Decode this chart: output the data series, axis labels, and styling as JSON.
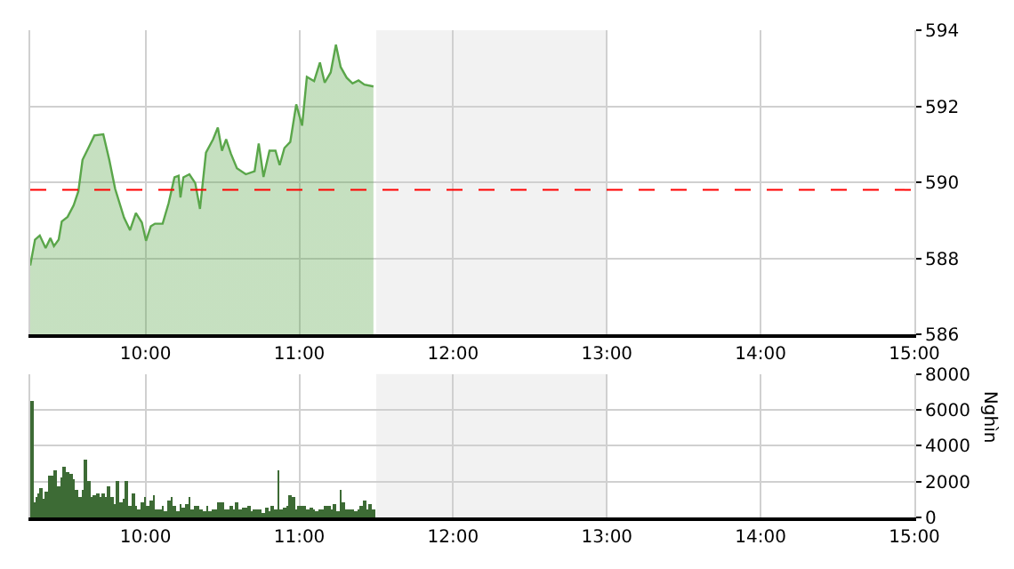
{
  "chart_data": [
    {
      "type": "area",
      "xlim": [
        9.25,
        15
      ],
      "ylim": [
        586,
        594
      ],
      "xticks": [
        {
          "value": 10,
          "label": "10:00"
        },
        {
          "value": 11,
          "label": "11:00"
        },
        {
          "value": 12,
          "label": "12:00"
        },
        {
          "value": 13,
          "label": "13:00"
        },
        {
          "value": 14,
          "label": "14:00"
        },
        {
          "value": 15,
          "label": "15:00"
        }
      ],
      "yticks": [
        586,
        588,
        590,
        592,
        594
      ],
      "grid": true,
      "marker": "none",
      "line_style": "solid",
      "x": [
        9.25,
        9.281,
        9.312,
        9.35,
        9.381,
        9.404,
        9.435,
        9.455,
        9.493,
        9.532,
        9.563,
        9.59,
        9.628,
        9.667,
        9.725,
        9.764,
        9.802,
        9.86,
        9.899,
        9.937,
        9.976,
        10.003,
        10.034,
        10.061,
        10.111,
        10.15,
        10.188,
        10.215,
        10.227,
        10.246,
        10.285,
        10.323,
        10.354,
        10.393,
        10.439,
        10.47,
        10.497,
        10.524,
        10.555,
        10.594,
        10.652,
        10.709,
        10.736,
        10.767,
        10.806,
        10.845,
        10.872,
        10.903,
        10.941,
        10.98,
        11.018,
        11.049,
        11.096,
        11.134,
        11.165,
        11.204,
        11.238,
        11.269,
        11.308,
        11.346,
        11.385,
        11.423,
        11.482
      ],
      "series": [
        {
          "type": "area",
          "color": "#5aa64a",
          "values": [
            587.81,
            588.49,
            588.6,
            588.27,
            588.53,
            588.32,
            588.49,
            588.97,
            589.09,
            589.39,
            589.76,
            590.59,
            590.9,
            591.23,
            591.26,
            590.59,
            589.83,
            589.07,
            588.74,
            589.19,
            588.94,
            588.46,
            588.84,
            588.91,
            588.91,
            589.45,
            590.13,
            590.17,
            589.6,
            590.13,
            590.21,
            589.98,
            589.3,
            590.78,
            591.13,
            591.44,
            590.83,
            591.13,
            590.75,
            590.37,
            590.21,
            590.29,
            591.02,
            590.14,
            590.83,
            590.83,
            590.45,
            590.9,
            591.06,
            592.05,
            591.49,
            592.77,
            592.66,
            593.15,
            592.62,
            592.89,
            593.62,
            593.03,
            592.75,
            592.6,
            592.68,
            592.57,
            592.52
          ]
        }
      ],
      "ref_lines": [
        {
          "axis": "y",
          "value": 589.8,
          "color": "#ff0000",
          "line_style": "dashed"
        }
      ],
      "bands": [
        {
          "axis": "x",
          "from": 11.5,
          "to": 13,
          "color": "#f2f2f2"
        }
      ]
    },
    {
      "type": "bar",
      "xlim": [
        9.25,
        15
      ],
      "ylim": [
        0,
        8000
      ],
      "ylabel": "Nghìn",
      "xticks": [
        {
          "value": 10,
          "label": "10:00"
        },
        {
          "value": 11,
          "label": "11:00"
        },
        {
          "value": 12,
          "label": "12:00"
        },
        {
          "value": 13,
          "label": "13:00"
        },
        {
          "value": 14,
          "label": "14:00"
        },
        {
          "value": 15,
          "label": "15:00"
        }
      ],
      "yticks": [
        0,
        2000,
        4000,
        6000,
        8000
      ],
      "grid": true,
      "color": "#3d6b35",
      "x": [
        9.258,
        9.273,
        9.292,
        9.308,
        9.319,
        9.339,
        9.358,
        9.377,
        9.397,
        9.416,
        9.435,
        9.455,
        9.474,
        9.494,
        9.513,
        9.532,
        9.551,
        9.57,
        9.59,
        9.609,
        9.628,
        9.647,
        9.667,
        9.686,
        9.706,
        9.725,
        9.744,
        9.763,
        9.783,
        9.802,
        9.821,
        9.841,
        9.86,
        9.879,
        9.899,
        9.918,
        9.937,
        9.957,
        9.976,
        9.995,
        10.014,
        10.034,
        10.053,
        10.072,
        10.092,
        10.111,
        10.13,
        10.15,
        10.169,
        10.188,
        10.208,
        10.227,
        10.246,
        10.265,
        10.285,
        10.304,
        10.323,
        10.343,
        10.362,
        10.381,
        10.401,
        10.42,
        10.439,
        10.458,
        10.478,
        10.497,
        10.516,
        10.536,
        10.555,
        10.574,
        10.594,
        10.613,
        10.632,
        10.652,
        10.671,
        10.69,
        10.709,
        10.729,
        10.748,
        10.767,
        10.787,
        10.806,
        10.825,
        10.844,
        10.864,
        10.883,
        10.903,
        10.922,
        10.941,
        10.96,
        10.98,
        10.999,
        11.018,
        11.038,
        11.057,
        11.076,
        11.096,
        11.115,
        11.134,
        11.153,
        11.173,
        11.192,
        11.211,
        11.231,
        11.25,
        11.269,
        11.289,
        11.308,
        11.327,
        11.346,
        11.366,
        11.385,
        11.404,
        11.423,
        11.443,
        11.462,
        11.482
      ],
      "values": [
        6500,
        900,
        1200,
        1400,
        1700,
        1100,
        1500,
        2300,
        2300,
        2600,
        1800,
        2200,
        2800,
        2500,
        2400,
        2100,
        1600,
        1200,
        1600,
        3200,
        2000,
        1200,
        1300,
        1400,
        1200,
        1400,
        1200,
        1800,
        1200,
        800,
        2000,
        900,
        1100,
        2000,
        700,
        1400,
        700,
        500,
        900,
        1200,
        700,
        1000,
        1300,
        500,
        500,
        700,
        400,
        1000,
        1200,
        700,
        400,
        800,
        600,
        800,
        1200,
        500,
        700,
        700,
        500,
        400,
        700,
        400,
        500,
        500,
        900,
        900,
        500,
        500,
        700,
        500,
        900,
        500,
        600,
        600,
        700,
        400,
        500,
        500,
        500,
        300,
        600,
        400,
        700,
        500,
        2600,
        500,
        600,
        700,
        1300,
        1200,
        500,
        700,
        700,
        700,
        500,
        600,
        500,
        400,
        500,
        500,
        700,
        700,
        500,
        800,
        400,
        1600,
        900,
        500,
        500,
        500,
        400,
        500,
        700,
        1000,
        500,
        800,
        500
      ],
      "bands": [
        {
          "axis": "x",
          "from": 11.5,
          "to": 13,
          "color": "#f2f2f2"
        }
      ]
    }
  ]
}
